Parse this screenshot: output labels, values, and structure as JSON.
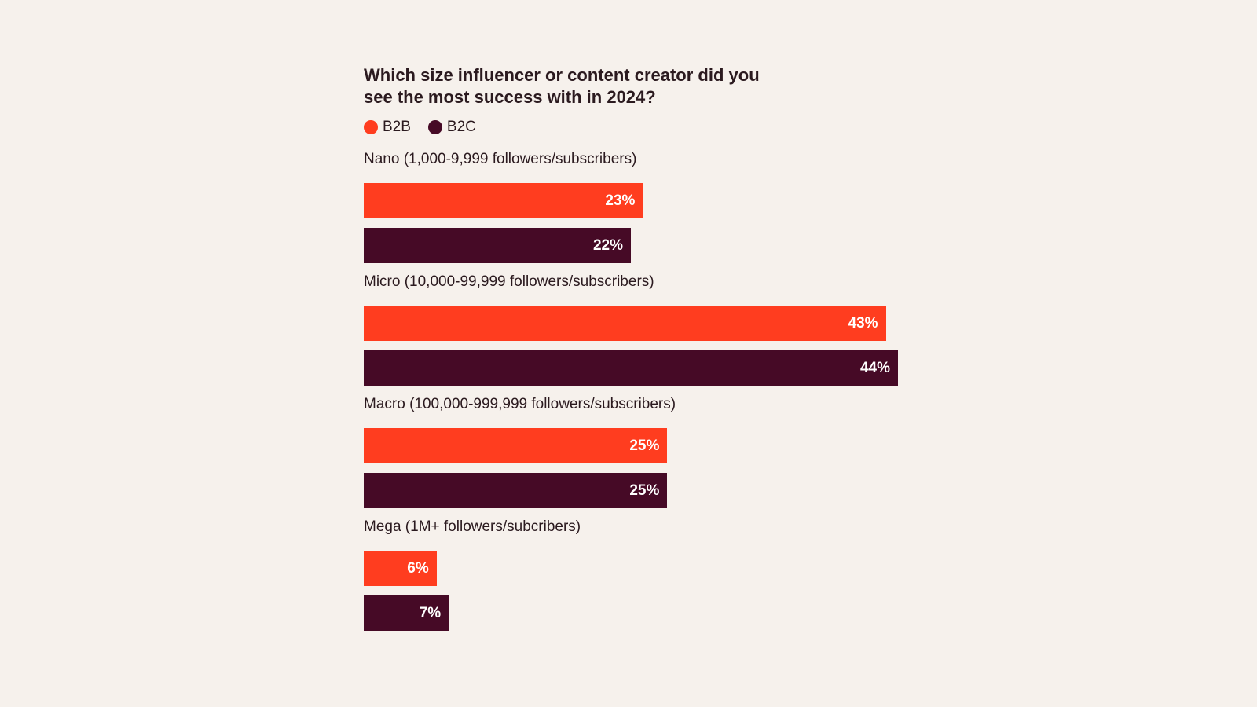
{
  "chart_data": {
    "type": "bar",
    "orientation": "horizontal",
    "title": "Which size influencer or content creator did you see the most success with in 2024?",
    "categories": [
      "Nano (1,000-9,999 followers/subscribers)",
      "Micro (10,000-99,999 followers/subscribers)",
      "Macro (100,000-999,999 followers/subscribers)",
      "Mega (1M+ followers/subcribers)"
    ],
    "series": [
      {
        "name": "B2B",
        "color": "#ff3d1f",
        "values": [
          23,
          43,
          25,
          6
        ]
      },
      {
        "name": "B2C",
        "color": "#460a26",
        "values": [
          22,
          44,
          25,
          7
        ]
      }
    ],
    "value_suffix": "%",
    "xlim": [
      0,
      44
    ],
    "legend_position": "top-left",
    "grid": false
  }
}
